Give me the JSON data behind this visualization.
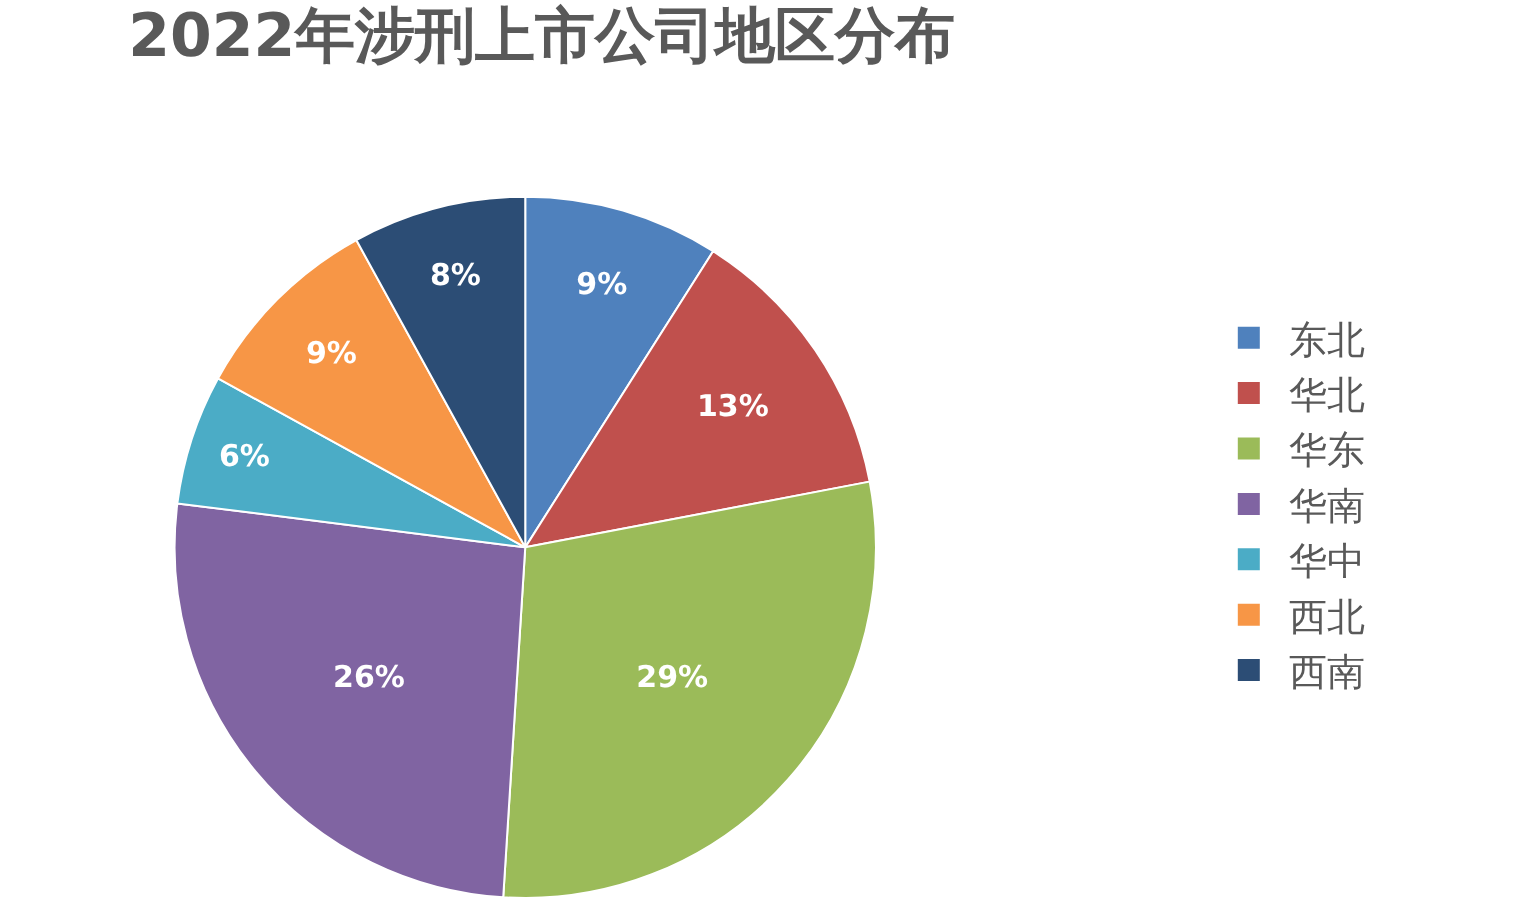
{
  "chart_data": {
    "type": "pie",
    "title": "2022年涉刑上市公司地区分布",
    "categories": [
      "东北",
      "华北",
      "华东",
      "华南",
      "华中",
      "西北",
      "西南"
    ],
    "values": [
      9,
      13,
      29,
      26,
      6,
      9,
      8
    ],
    "value_labels": [
      "9%",
      "13%",
      "29%",
      "26%",
      "6%",
      "9%",
      "8%"
    ],
    "colors": [
      "#4f81bd",
      "#c0504d",
      "#9bbb59",
      "#8064a2",
      "#4bacc6",
      "#f79646",
      "#2c4d75"
    ],
    "legend": "right"
  }
}
